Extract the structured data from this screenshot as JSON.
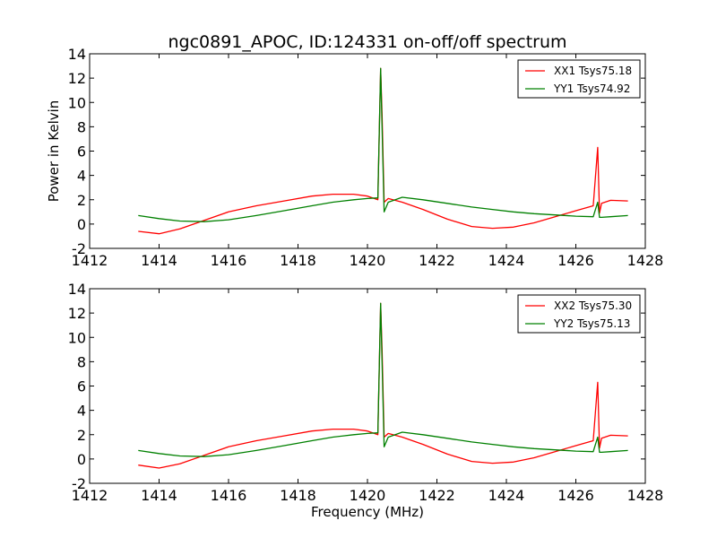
{
  "figure": {
    "title": "ngc0891_APOC, ID:124331 on-off/off spectrum"
  },
  "chart_data": [
    {
      "type": "line",
      "title": "ngc0891_APOC, ID:124331 on-off/off spectrum",
      "xlabel": "",
      "ylabel": "Power in Kelvin",
      "xlim": [
        1412,
        1428
      ],
      "ylim": [
        -2,
        14
      ],
      "xticks": [
        1412,
        1414,
        1416,
        1418,
        1420,
        1422,
        1424,
        1426,
        1428
      ],
      "yticks": [
        -2,
        0,
        2,
        4,
        6,
        8,
        10,
        12,
        14
      ],
      "legend_position": "top-right",
      "series": [
        {
          "name": "XX1 Tsys75.18",
          "color": "#ff0000",
          "x": [
            1413.4,
            1414.0,
            1414.6,
            1415.3,
            1416.0,
            1416.8,
            1417.6,
            1418.4,
            1419.0,
            1419.6,
            1420.0,
            1420.3,
            1420.38,
            1420.42,
            1420.48,
            1420.6,
            1421.0,
            1421.6,
            1422.3,
            1423.0,
            1423.6,
            1424.2,
            1424.8,
            1425.4,
            1426.0,
            1426.5,
            1426.63,
            1426.68,
            1426.74,
            1427.0,
            1427.5
          ],
          "y": [
            -0.6,
            -0.8,
            -0.4,
            0.3,
            1.0,
            1.5,
            1.9,
            2.3,
            2.45,
            2.45,
            2.3,
            2.0,
            12.8,
            9.0,
            1.8,
            2.1,
            1.8,
            1.2,
            0.4,
            -0.2,
            -0.35,
            -0.25,
            0.1,
            0.6,
            1.1,
            1.5,
            6.3,
            0.9,
            1.7,
            1.95,
            1.9
          ]
        },
        {
          "name": "YY1 Tsys74.92",
          "color": "#008000",
          "x": [
            1413.4,
            1414.0,
            1414.6,
            1415.3,
            1416.0,
            1416.8,
            1417.6,
            1418.4,
            1419.0,
            1419.6,
            1420.0,
            1420.3,
            1420.38,
            1420.42,
            1420.48,
            1420.6,
            1421.0,
            1421.6,
            1422.3,
            1423.0,
            1423.6,
            1424.2,
            1424.8,
            1425.4,
            1426.0,
            1426.5,
            1426.63,
            1426.68,
            1426.74,
            1427.0,
            1427.5
          ],
          "y": [
            0.7,
            0.45,
            0.25,
            0.2,
            0.35,
            0.7,
            1.1,
            1.5,
            1.8,
            2.0,
            2.1,
            2.15,
            12.8,
            8.0,
            1.0,
            1.8,
            2.2,
            2.0,
            1.7,
            1.4,
            1.2,
            1.0,
            0.85,
            0.75,
            0.65,
            0.6,
            1.8,
            0.55,
            0.55,
            0.6,
            0.7
          ]
        }
      ]
    },
    {
      "type": "line",
      "title": "",
      "xlabel": "Frequency (MHz)",
      "ylabel": "",
      "xlim": [
        1412,
        1428
      ],
      "ylim": [
        -2,
        14
      ],
      "xticks": [
        1412,
        1414,
        1416,
        1418,
        1420,
        1422,
        1424,
        1426,
        1428
      ],
      "yticks": [
        -2,
        0,
        2,
        4,
        6,
        8,
        10,
        12,
        14
      ],
      "legend_position": "top-right",
      "series": [
        {
          "name": "XX2 Tsys75.30",
          "color": "#ff0000",
          "x": [
            1413.4,
            1414.0,
            1414.6,
            1415.3,
            1416.0,
            1416.8,
            1417.6,
            1418.4,
            1419.0,
            1419.6,
            1420.0,
            1420.3,
            1420.38,
            1420.42,
            1420.48,
            1420.6,
            1421.0,
            1421.6,
            1422.3,
            1423.0,
            1423.6,
            1424.2,
            1424.8,
            1425.4,
            1426.0,
            1426.5,
            1426.63,
            1426.68,
            1426.74,
            1427.0,
            1427.5
          ],
          "y": [
            -0.5,
            -0.75,
            -0.4,
            0.3,
            1.0,
            1.5,
            1.9,
            2.3,
            2.45,
            2.45,
            2.3,
            2.0,
            12.8,
            9.0,
            1.8,
            2.1,
            1.8,
            1.2,
            0.4,
            -0.2,
            -0.35,
            -0.25,
            0.1,
            0.6,
            1.1,
            1.5,
            6.3,
            0.9,
            1.7,
            1.95,
            1.9
          ]
        },
        {
          "name": "YY2 Tsys75.13",
          "color": "#008000",
          "x": [
            1413.4,
            1414.0,
            1414.6,
            1415.3,
            1416.0,
            1416.8,
            1417.6,
            1418.4,
            1419.0,
            1419.6,
            1420.0,
            1420.3,
            1420.38,
            1420.42,
            1420.48,
            1420.6,
            1421.0,
            1421.6,
            1422.3,
            1423.0,
            1423.6,
            1424.2,
            1424.8,
            1425.4,
            1426.0,
            1426.5,
            1426.63,
            1426.68,
            1426.74,
            1427.0,
            1427.5
          ],
          "y": [
            0.7,
            0.45,
            0.25,
            0.2,
            0.35,
            0.7,
            1.1,
            1.5,
            1.8,
            2.0,
            2.1,
            2.15,
            12.8,
            8.0,
            1.0,
            1.8,
            2.2,
            2.0,
            1.7,
            1.4,
            1.2,
            1.0,
            0.85,
            0.75,
            0.65,
            0.6,
            1.8,
            0.55,
            0.55,
            0.6,
            0.7
          ]
        }
      ]
    }
  ]
}
